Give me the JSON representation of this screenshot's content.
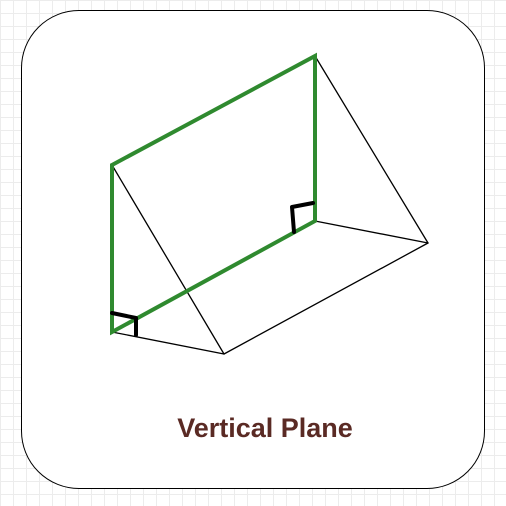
{
  "diagram": {
    "caption": "Vertical Plane",
    "colors": {
      "plane_edge": "#2f8a2f",
      "solid_edge": "#000000",
      "right_angle_marker": "#000000",
      "caption": "#5a2a24",
      "card_border": "#000000",
      "grid": "#ececec"
    }
  }
}
